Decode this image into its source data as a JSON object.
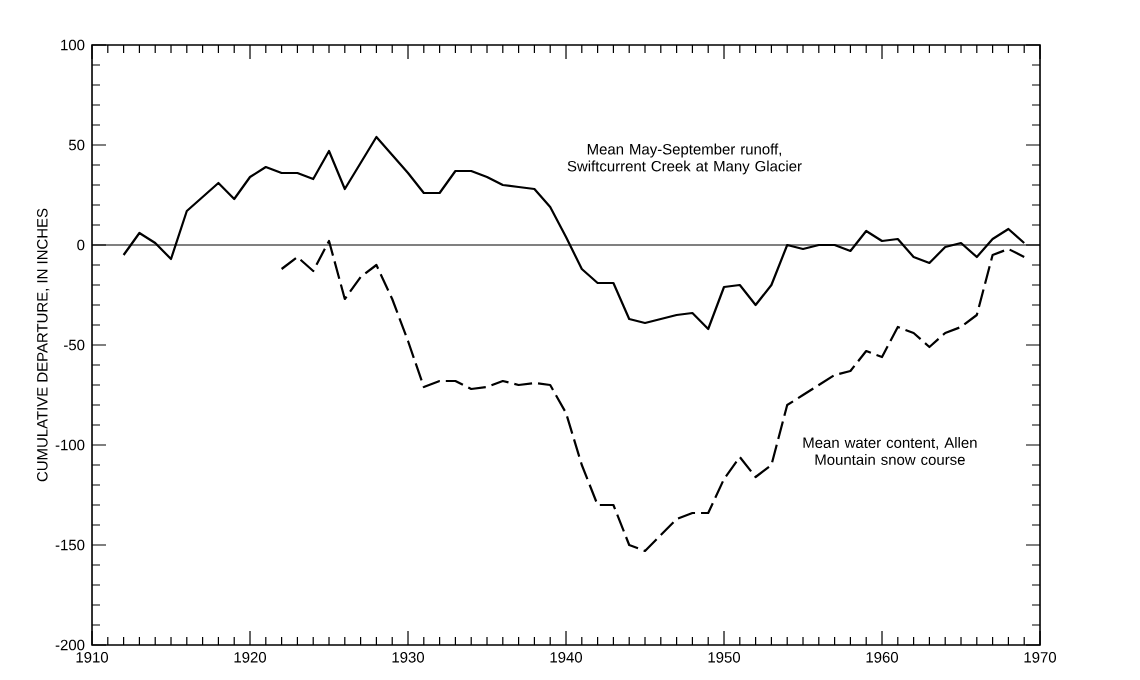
{
  "chart_data": {
    "type": "line",
    "ylabel": "CUMULATIVE DEPARTURE, IN INCHES",
    "xlim": [
      1910,
      1970
    ],
    "ylim": [
      -200,
      100
    ],
    "xticks": [
      1910,
      1920,
      1930,
      1940,
      1950,
      1960,
      1970
    ],
    "yticks": [
      -200,
      -150,
      -100,
      -50,
      0,
      50,
      100
    ],
    "grid": false,
    "legend": false,
    "marker": "none",
    "ref_lines": [
      {
        "axis": "y",
        "value": 0,
        "color": "#000000",
        "line_style": "solid"
      }
    ],
    "series": [
      {
        "name": "Mean May-September runoff, Swiftcurrent Creek at Many Glacier",
        "color": "#000000",
        "line_style": "solid",
        "x": [
          1912,
          1913,
          1914,
          1915,
          1916,
          1917,
          1918,
          1919,
          1920,
          1921,
          1922,
          1923,
          1924,
          1925,
          1926,
          1927,
          1928,
          1929,
          1930,
          1931,
          1932,
          1933,
          1934,
          1935,
          1936,
          1937,
          1938,
          1939,
          1940,
          1941,
          1942,
          1943,
          1944,
          1945,
          1946,
          1947,
          1948,
          1949,
          1950,
          1951,
          1952,
          1953,
          1954,
          1955,
          1956,
          1957,
          1958,
          1959,
          1960,
          1961,
          1962,
          1963,
          1964,
          1965,
          1966,
          1967,
          1968,
          1969
        ],
        "values": [
          -5,
          6,
          1,
          -7,
          17,
          24,
          31,
          23,
          34,
          39,
          36,
          36,
          33,
          47,
          28,
          41,
          54,
          45,
          36,
          26,
          26,
          37,
          37,
          34,
          30,
          29,
          28,
          19,
          4,
          -12,
          -19,
          -19,
          -37,
          -39,
          -37,
          -35,
          -34,
          -42,
          -21,
          -20,
          -30,
          -20,
          0,
          -2,
          0,
          0,
          -3,
          7,
          2,
          3,
          -6,
          -9,
          -1,
          1,
          -6,
          3,
          8,
          1
        ]
      },
      {
        "name": "Mean water content, Allen Mountain snow course",
        "color": "#000000",
        "line_style": "dashed",
        "x": [
          1922,
          1923,
          1924,
          1925,
          1926,
          1927,
          1928,
          1929,
          1930,
          1931,
          1932,
          1933,
          1934,
          1935,
          1936,
          1937,
          1938,
          1939,
          1940,
          1941,
          1942,
          1943,
          1944,
          1945,
          1946,
          1947,
          1948,
          1949,
          1950,
          1951,
          1952,
          1953,
          1954,
          1955,
          1956,
          1957,
          1958,
          1959,
          1960,
          1961,
          1962,
          1963,
          1964,
          1965,
          1966,
          1967,
          1968,
          1969
        ],
        "values": [
          -12,
          -6,
          -13,
          2,
          -27,
          -16,
          -10,
          -27,
          -48,
          -71,
          -68,
          -68,
          -72,
          -71,
          -68,
          -70,
          -69,
          -70,
          -84,
          -110,
          -130,
          -130,
          -150,
          -153,
          -145,
          -137,
          -134,
          -134,
          -117,
          -106,
          -116,
          -110,
          -80,
          -75,
          -70,
          -65,
          -63,
          -53,
          -56,
          -41,
          -44,
          -51,
          -44,
          -41,
          -35,
          -5,
          -2,
          -6
        ]
      }
    ]
  }
}
